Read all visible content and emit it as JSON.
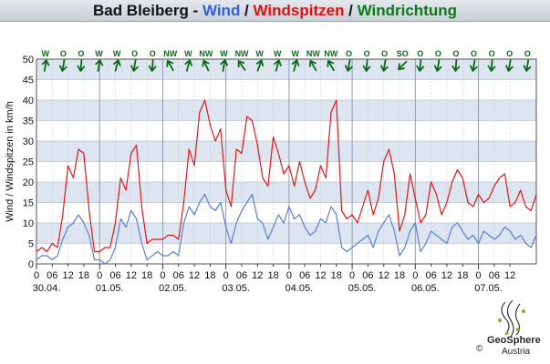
{
  "title": {
    "station": "Bad Bleiberg",
    "sep1": " - ",
    "wind": "Wind",
    "sep2": " / ",
    "gusts": "Windspitzen",
    "sep3": " / ",
    "direction": "Windrichtung"
  },
  "colors": {
    "wind": "#5b7fd6",
    "gusts": "#e01818",
    "direction": "#0a6a14",
    "title_wind": "#2f62d9",
    "title_gusts": "#e01010",
    "title_direction": "#0a7a14",
    "band": "#dde5f0",
    "grid": "#b8c4d4"
  },
  "logo": {
    "name": "GeoSphere",
    "country": "Austria",
    "copyright": "©"
  },
  "chart_data": {
    "type": "line",
    "title": "Bad Bleiberg - Wind / Windspitzen / Windrichtung",
    "ylabel": "Wind / Windspitzen in km/h",
    "ylim": [
      0,
      50
    ],
    "yticks": [
      0,
      5,
      10,
      15,
      20,
      25,
      30,
      35,
      40,
      45,
      50
    ],
    "grid": true,
    "x_unit": "hours since 30.04. 00:00",
    "x_range": [
      0,
      190
    ],
    "xtick_labels": [
      "0",
      "06",
      "12",
      "18",
      "0",
      "06",
      "12",
      "18",
      "0",
      "06",
      "12",
      "18",
      "0",
      "06",
      "12",
      "18",
      "0",
      "06",
      "12",
      "18",
      "0",
      "06",
      "12",
      "18",
      "0",
      "06",
      "12",
      "18",
      "0",
      "06",
      "12"
    ],
    "date_labels": [
      {
        "x": 0,
        "label": "30.04."
      },
      {
        "x": 24,
        "label": "01.05."
      },
      {
        "x": 48,
        "label": "02.05."
      },
      {
        "x": 72,
        "label": "03.05."
      },
      {
        "x": 96,
        "label": "04.05."
      },
      {
        "x": 120,
        "label": "05.05."
      },
      {
        "x": 144,
        "label": "06.05."
      },
      {
        "x": 168,
        "label": "07.05."
      }
    ],
    "direction_labels": [
      "W",
      "O",
      "O",
      "W",
      "W",
      "O",
      "O",
      "NW",
      "W",
      "NW",
      "W",
      "NW",
      "W",
      "W",
      "W",
      "NW",
      "NW",
      "O",
      "O",
      "O",
      "SO",
      "O",
      "O",
      "O",
      "O",
      "O",
      "O",
      "O"
    ],
    "direction_angles": [
      -80,
      100,
      95,
      -80,
      -75,
      100,
      95,
      -120,
      -75,
      -115,
      -80,
      -125,
      -70,
      -75,
      -75,
      -120,
      -120,
      100,
      95,
      100,
      135,
      95,
      100,
      95,
      100,
      95,
      100,
      100
    ],
    "series": [
      {
        "name": "Windspitzen",
        "x": [
          0,
          2,
          4,
          6,
          8,
          10,
          12,
          14,
          16,
          18,
          20,
          22,
          24,
          26,
          28,
          30,
          32,
          34,
          36,
          38,
          40,
          42,
          44,
          46,
          48,
          50,
          52,
          54,
          56,
          58,
          60,
          62,
          64,
          66,
          68,
          70,
          72,
          74,
          76,
          78,
          80,
          82,
          84,
          86,
          88,
          90,
          92,
          94,
          96,
          98,
          100,
          102,
          104,
          106,
          108,
          110,
          112,
          114,
          116,
          118,
          120,
          122,
          124,
          126,
          128,
          130,
          132,
          134,
          136,
          138,
          140,
          142,
          144,
          146,
          148,
          150,
          152,
          154,
          156,
          158,
          160,
          162,
          164,
          166,
          168,
          170,
          172,
          174,
          176,
          178,
          180,
          182,
          184,
          186,
          188,
          190
        ],
        "values": [
          3,
          4,
          3,
          5,
          4,
          12,
          24,
          21,
          28,
          27,
          13,
          3,
          3,
          4,
          4,
          10,
          21,
          18,
          27,
          29,
          14,
          5,
          6,
          6,
          6,
          7,
          7,
          6,
          15,
          28,
          24,
          37,
          40,
          34,
          30,
          33,
          18,
          14,
          28,
          27,
          36,
          35,
          29,
          21,
          19,
          31,
          27,
          22,
          24,
          19,
          25,
          20,
          16,
          18,
          24,
          21,
          37,
          40,
          13,
          11,
          12,
          10,
          14,
          18,
          12,
          16,
          25,
          28,
          22,
          8,
          12,
          22,
          16,
          10,
          12,
          20,
          17,
          12,
          15,
          20,
          23,
          21,
          15,
          14,
          17,
          15,
          16,
          19,
          21,
          22,
          14,
          15,
          18,
          14,
          13,
          17
        ]
      },
      {
        "name": "Wind",
        "x": [
          0,
          2,
          4,
          6,
          8,
          10,
          12,
          14,
          16,
          18,
          20,
          22,
          24,
          26,
          28,
          30,
          32,
          34,
          36,
          38,
          40,
          42,
          44,
          46,
          48,
          50,
          52,
          54,
          56,
          58,
          60,
          62,
          64,
          66,
          68,
          70,
          72,
          74,
          76,
          78,
          80,
          82,
          84,
          86,
          88,
          90,
          92,
          94,
          96,
          98,
          100,
          102,
          104,
          106,
          108,
          110,
          112,
          114,
          116,
          118,
          120,
          122,
          124,
          126,
          128,
          130,
          132,
          134,
          136,
          138,
          140,
          142,
          144,
          146,
          148,
          150,
          152,
          154,
          156,
          158,
          160,
          162,
          164,
          166,
          168,
          170,
          172,
          174,
          176,
          178,
          180,
          182,
          184,
          186,
          188,
          190
        ],
        "values": [
          1,
          2,
          2,
          1,
          2,
          6,
          9,
          10,
          12,
          10,
          7,
          1,
          1,
          0,
          1,
          4,
          11,
          9,
          13,
          11,
          5,
          1,
          2,
          3,
          2,
          2,
          3,
          2,
          10,
          14,
          12,
          15,
          17,
          14,
          13,
          15,
          9,
          5,
          10,
          13,
          15,
          17,
          11,
          10,
          6,
          9,
          12,
          10,
          14,
          11,
          12,
          9,
          7,
          8,
          11,
          10,
          14,
          12,
          4,
          3,
          4,
          5,
          6,
          7,
          4,
          8,
          10,
          12,
          8,
          2,
          4,
          8,
          10,
          3,
          5,
          8,
          7,
          6,
          5,
          9,
          10,
          8,
          6,
          7,
          5,
          8,
          7,
          6,
          7,
          9,
          8,
          6,
          7,
          5,
          4,
          7
        ]
      }
    ]
  }
}
